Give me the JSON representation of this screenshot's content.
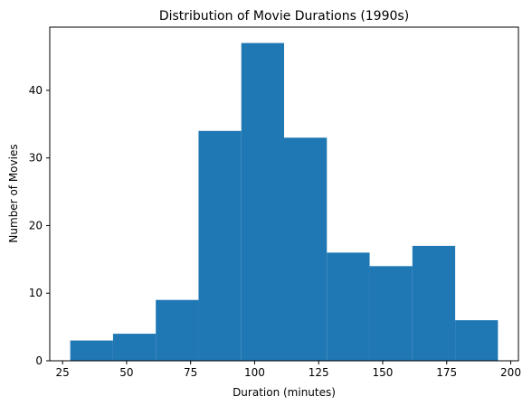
{
  "chart_data": {
    "type": "bar",
    "subtype": "histogram",
    "title": "Distribution of Movie Durations (1990s)",
    "xlabel": "Duration (minutes)",
    "ylabel": "Number of Movies",
    "bin_edges": [
      28,
      44.7,
      61.4,
      78.1,
      94.8,
      111.5,
      128.2,
      144.9,
      161.6,
      178.3,
      195
    ],
    "values": [
      3,
      4,
      9,
      34,
      47,
      33,
      16,
      14,
      17,
      6
    ],
    "xlim": [
      20,
      203
    ],
    "ylim": [
      0,
      49.35
    ],
    "xticks": [
      25,
      50,
      75,
      100,
      125,
      150,
      175,
      200
    ],
    "yticks": [
      0,
      10,
      20,
      30,
      40
    ],
    "bar_color": "#1f77b4",
    "grid": false,
    "legend": "none"
  }
}
